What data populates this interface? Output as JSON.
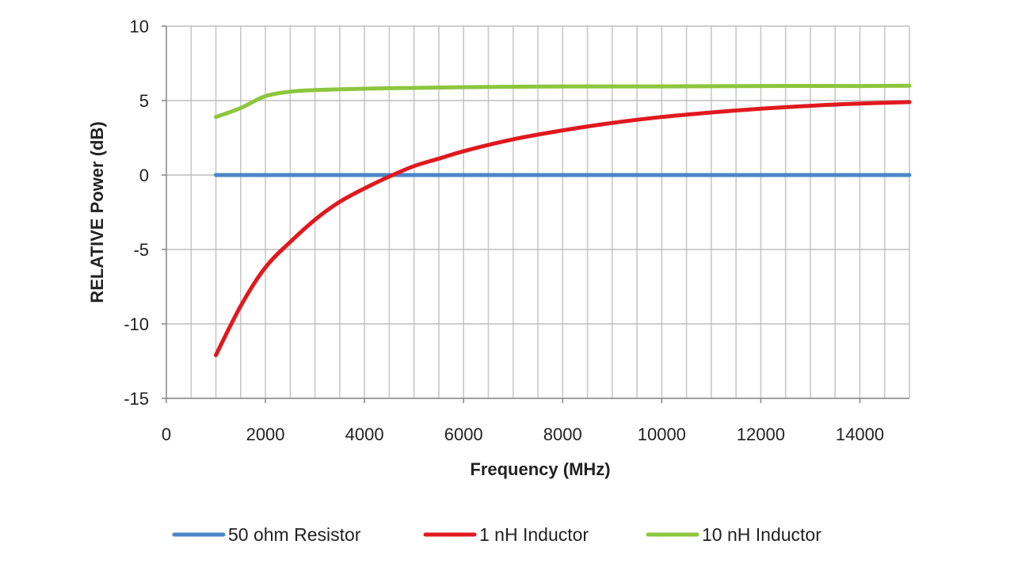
{
  "chart_data": {
    "type": "line",
    "title": "",
    "xlabel": "Frequency (MHz)",
    "ylabel": "RELATIVE Power (dB)",
    "xlim": [
      0,
      15000
    ],
    "ylim": [
      -15,
      10
    ],
    "x_ticks": [
      0,
      2000,
      4000,
      6000,
      8000,
      10000,
      12000,
      14000
    ],
    "x_tick_labels": [
      "0",
      "2000",
      "4000",
      "6000",
      "8000",
      "10000",
      "12000",
      "14000"
    ],
    "y_ticks": [
      -15,
      -10,
      -5,
      0,
      5,
      10
    ],
    "y_tick_labels": [
      "-15",
      "-10",
      "-5",
      "0",
      "5",
      "10"
    ],
    "x_minor_gridline_step": 500,
    "grid": true,
    "legend_position": "bottom",
    "series": [
      {
        "name": "50 ohm Resistor",
        "color": "#4a86c8",
        "x": [
          1000,
          15000
        ],
        "y": [
          0,
          0
        ]
      },
      {
        "name": "1 nH Inductor",
        "color": "#e0191e",
        "x": [
          1000,
          1500,
          2000,
          2500,
          3000,
          3500,
          4000,
          4500,
          5000,
          5500,
          6000,
          7000,
          8000,
          9000,
          10000,
          11000,
          12000,
          13000,
          14000,
          15000
        ],
        "y": [
          -12.1,
          -8.8,
          -6.2,
          -4.5,
          -3.0,
          -1.8,
          -0.9,
          -0.1,
          0.6,
          1.1,
          1.6,
          2.4,
          3.0,
          3.5,
          3.9,
          4.2,
          4.45,
          4.65,
          4.8,
          4.9
        ]
      },
      {
        "name": "10 nH Inductor",
        "color": "#8cc63e",
        "x": [
          1000,
          1500,
          2000,
          2500,
          3000,
          4000,
          5000,
          6000,
          8000,
          10000,
          12000,
          14000,
          15000
        ],
        "y": [
          3.9,
          4.5,
          5.3,
          5.6,
          5.7,
          5.8,
          5.85,
          5.9,
          5.95,
          5.95,
          5.98,
          5.98,
          6.0
        ]
      }
    ]
  }
}
